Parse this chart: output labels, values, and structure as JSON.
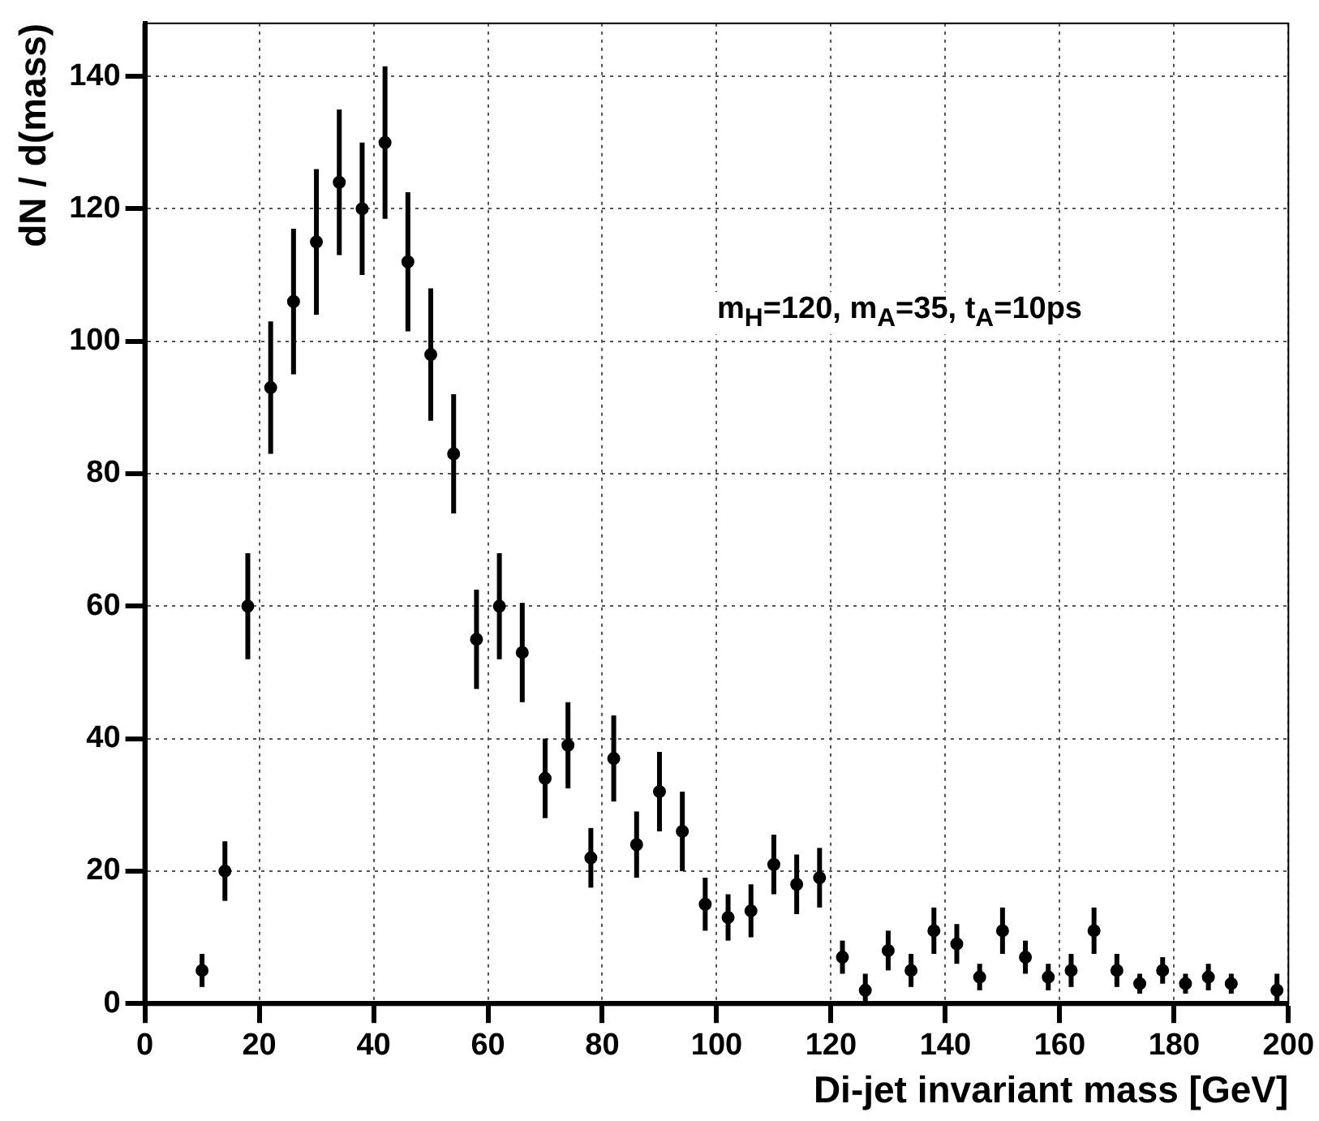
{
  "chart_data": {
    "type": "scatter",
    "xlabel": "Di-jet invariant mass [GeV]",
    "ylabel": "dN / d(mass)",
    "annotations": [
      "m$_{H}$=120, m$_{A}$=35, t$_{A}$=10ps"
    ],
    "x": [
      10,
      14,
      18,
      22,
      26,
      30,
      34,
      38,
      42,
      46,
      50,
      54,
      58,
      62,
      66,
      70,
      74,
      78,
      82,
      86,
      90,
      94,
      98,
      102,
      106,
      110,
      114,
      118,
      122,
      126,
      130,
      134,
      138,
      142,
      146,
      150,
      154,
      158,
      162,
      166,
      170,
      174,
      178,
      182,
      186,
      190,
      198
    ],
    "series": [
      {
        "color": "#000000",
        "values": [
          5,
          20,
          60,
          93,
          106,
          115,
          124,
          120,
          130,
          112,
          98,
          83,
          55,
          60,
          53,
          34,
          39,
          22,
          37,
          24,
          32,
          26,
          15,
          13,
          14,
          21,
          18,
          19,
          7,
          2,
          8,
          5,
          11,
          9,
          4,
          11,
          7,
          4,
          5,
          11,
          5,
          3,
          5,
          3,
          4,
          3,
          2
        ],
        "errors": [
          2.5,
          4.5,
          8,
          10,
          11,
          11,
          11,
          10,
          11.5,
          10.5,
          10,
          9,
          7.5,
          8,
          7.5,
          6,
          6.5,
          4.5,
          6.5,
          5,
          6,
          6,
          4,
          3.5,
          4,
          4.5,
          4.5,
          4.5,
          2.5,
          2.5,
          3,
          2.5,
          3.5,
          3,
          2,
          3.5,
          2.5,
          2,
          2.5,
          3.5,
          2.5,
          1.5,
          2,
          1.5,
          2,
          1.5,
          2.5
        ]
      }
    ],
    "xlim": [
      0,
      200
    ],
    "xticks": [
      0,
      20,
      40,
      60,
      80,
      100,
      120,
      140,
      160,
      180,
      200
    ],
    "ylim": [
      0,
      148
    ],
    "yticks": [
      0,
      20,
      40,
      60,
      80,
      100,
      120,
      140
    ],
    "grid": true,
    "legend": false,
    "marker": "circle"
  }
}
